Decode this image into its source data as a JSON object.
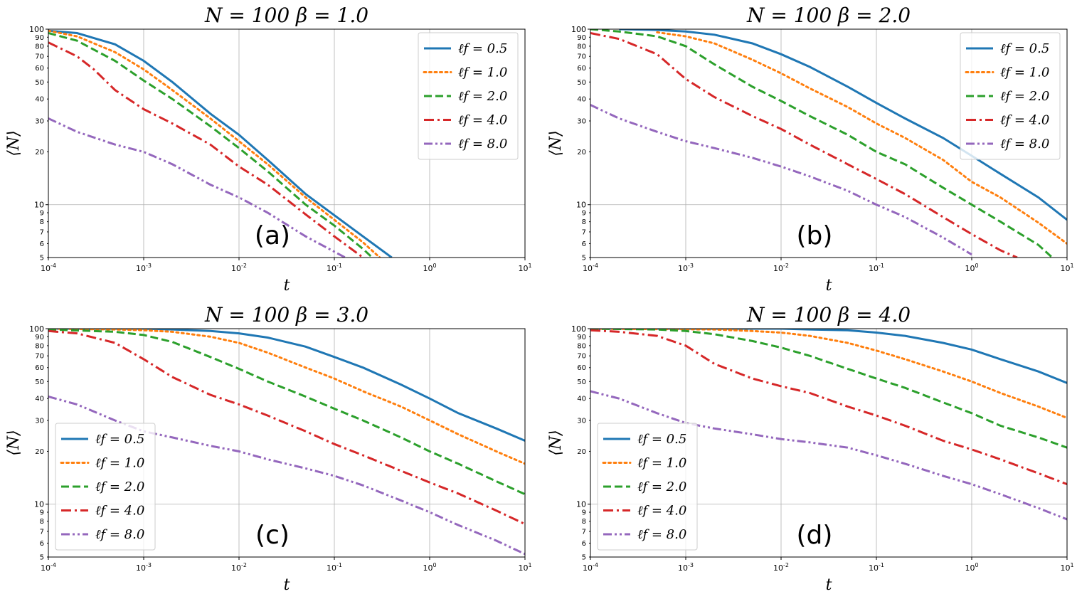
{
  "chart_data": [
    {
      "type": "line",
      "panel": "(a)",
      "title": "N = 100    β = 1.0",
      "xlabel": "t",
      "ylabel": "⟨N⟩",
      "xscale": "log",
      "yscale": "log",
      "xlim": [
        0.0001,
        10
      ],
      "ylim": [
        5,
        100
      ],
      "grid": true,
      "legend_position": "top-right",
      "series": [
        {
          "name": "ℓf = 0.5",
          "color": "#1f77b4",
          "style": "solid",
          "x": [
            0.0001,
            0.0002,
            0.0005,
            0.001,
            0.002,
            0.005,
            0.01,
            0.02,
            0.05,
            0.1,
            0.2,
            0.4
          ],
          "y": [
            98,
            95,
            82,
            66,
            50,
            33,
            25,
            18,
            11.5,
            8.7,
            6.6,
            5
          ]
        },
        {
          "name": "ℓf = 1.0",
          "color": "#ff7f0e",
          "style": "dotted",
          "x": [
            0.0001,
            0.0002,
            0.0005,
            0.001,
            0.002,
            0.005,
            0.01,
            0.02,
            0.05,
            0.1,
            0.2,
            0.3
          ],
          "y": [
            98,
            91,
            74,
            59,
            45,
            31,
            23,
            17,
            11,
            8.2,
            6.1,
            5
          ]
        },
        {
          "name": "ℓf = 2.0",
          "color": "#2ca02c",
          "style": "dashed",
          "x": [
            0.0001,
            0.0002,
            0.0005,
            0.001,
            0.002,
            0.005,
            0.01,
            0.02,
            0.05,
            0.1,
            0.2,
            0.25
          ],
          "y": [
            95,
            86,
            66,
            51,
            40,
            28,
            21,
            15.5,
            10,
            7.6,
            5.6,
            5
          ]
        },
        {
          "name": "ℓf = 4.0",
          "color": "#d62728",
          "style": "dashdot",
          "x": [
            0.0001,
            0.0002,
            0.0003,
            0.0005,
            0.001,
            0.002,
            0.005,
            0.01,
            0.02,
            0.05,
            0.1,
            0.2
          ],
          "y": [
            84,
            70,
            59,
            45,
            35,
            29,
            22,
            16.5,
            13,
            8.8,
            6.6,
            5
          ]
        },
        {
          "name": "ℓf = 8.0",
          "color": "#9467bd",
          "style": "dashdotdot",
          "x": [
            0.0001,
            0.0002,
            0.0005,
            0.001,
            0.002,
            0.005,
            0.01,
            0.02,
            0.05,
            0.1,
            0.13
          ],
          "y": [
            31,
            26,
            22,
            20,
            17,
            13,
            11,
            9,
            6.6,
            5.4,
            5
          ]
        }
      ]
    },
    {
      "type": "line",
      "panel": "(b)",
      "title": "N = 100    β = 2.0",
      "xlabel": "t",
      "ylabel": "⟨N⟩",
      "xscale": "log",
      "yscale": "log",
      "xlim": [
        0.0001,
        10
      ],
      "ylim": [
        5,
        100
      ],
      "grid": true,
      "legend_position": "top-right",
      "series": [
        {
          "name": "ℓf = 0.5",
          "color": "#1f77b4",
          "style": "solid",
          "x": [
            0.0002,
            0.0005,
            0.001,
            0.002,
            0.005,
            0.01,
            0.02,
            0.05,
            0.1,
            0.2,
            0.5,
            1,
            2,
            5,
            10
          ],
          "y": [
            100,
            99,
            97,
            93,
            83,
            72,
            61,
            47,
            38,
            31,
            24,
            19,
            15,
            11,
            8.2
          ]
        },
        {
          "name": "ℓf = 1.0",
          "color": "#ff7f0e",
          "style": "dotted",
          "x": [
            0.0005,
            0.001,
            0.002,
            0.005,
            0.01,
            0.02,
            0.05,
            0.1,
            0.2,
            0.5,
            1,
            2,
            5,
            10
          ],
          "y": [
            96,
            91,
            83,
            67,
            56,
            46,
            36,
            29,
            24,
            18,
            13.5,
            11,
            7.9,
            6
          ]
        },
        {
          "name": "ℓf = 2.0",
          "color": "#2ca02c",
          "style": "dashed",
          "x": [
            0.0001,
            0.0002,
            0.0005,
            0.001,
            0.002,
            0.005,
            0.01,
            0.02,
            0.05,
            0.1,
            0.2,
            0.5,
            1,
            2,
            5,
            7
          ],
          "y": [
            100,
            97,
            91,
            80,
            63,
            47,
            39,
            32,
            25,
            20,
            17,
            12.5,
            10,
            8,
            5.9,
            5
          ]
        },
        {
          "name": "ℓf = 4.0",
          "color": "#d62728",
          "style": "dashdot",
          "x": [
            0.0001,
            0.0002,
            0.0005,
            0.001,
            0.002,
            0.005,
            0.01,
            0.02,
            0.05,
            0.1,
            0.2,
            0.5,
            1,
            2,
            3
          ],
          "y": [
            95,
            88,
            72,
            52,
            41,
            32,
            27,
            22,
            17,
            14,
            11.5,
            8.5,
            6.8,
            5.5,
            5
          ]
        },
        {
          "name": "ℓf = 8.0",
          "color": "#9467bd",
          "style": "dashdotdot",
          "x": [
            0.0001,
            0.0002,
            0.0005,
            0.001,
            0.002,
            0.005,
            0.01,
            0.02,
            0.05,
            0.1,
            0.2,
            0.5,
            1
          ],
          "y": [
            37,
            31,
            26,
            23,
            21,
            18.5,
            16.5,
            14.5,
            12,
            10,
            8.5,
            6.5,
            5.2
          ]
        }
      ]
    },
    {
      "type": "line",
      "panel": "(c)",
      "title": "N = 100    β = 3.0",
      "xlabel": "t",
      "ylabel": "⟨N⟩",
      "xscale": "log",
      "yscale": "log",
      "xlim": [
        0.0001,
        10
      ],
      "ylim": [
        5,
        100
      ],
      "grid": true,
      "legend_position": "bottom-left",
      "series": [
        {
          "name": "ℓf = 0.5",
          "color": "#1f77b4",
          "style": "solid",
          "x": [
            0.0001,
            0.001,
            0.002,
            0.005,
            0.01,
            0.02,
            0.05,
            0.1,
            0.2,
            0.5,
            1,
            2,
            5,
            10
          ],
          "y": [
            100,
            100,
            99,
            97,
            94,
            89,
            79,
            69,
            60,
            48,
            40,
            33,
            27,
            23
          ]
        },
        {
          "name": "ℓf = 1.0",
          "color": "#ff7f0e",
          "style": "dotted",
          "x": [
            0.0001,
            0.0005,
            0.001,
            0.002,
            0.005,
            0.01,
            0.02,
            0.05,
            0.1,
            0.2,
            0.5,
            1,
            2,
            5,
            10
          ],
          "y": [
            100,
            99,
            98,
            96,
            90,
            83,
            73,
            60,
            52,
            44,
            36,
            30,
            25,
            20,
            17
          ]
        },
        {
          "name": "ℓf = 2.0",
          "color": "#2ca02c",
          "style": "dashed",
          "x": [
            0.0001,
            0.0005,
            0.001,
            0.002,
            0.005,
            0.01,
            0.02,
            0.05,
            0.1,
            0.2,
            0.5,
            1,
            2,
            5,
            10
          ],
          "y": [
            99,
            96,
            92,
            84,
            69,
            59,
            50,
            41,
            35,
            30,
            24,
            20,
            17,
            13.5,
            11.4
          ]
        },
        {
          "name": "ℓf = 4.0",
          "color": "#d62728",
          "style": "dashdot",
          "x": [
            0.0001,
            0.0002,
            0.0005,
            0.001,
            0.002,
            0.005,
            0.01,
            0.02,
            0.05,
            0.1,
            0.2,
            0.5,
            1,
            2,
            5,
            10
          ],
          "y": [
            97,
            94,
            83,
            67,
            53,
            42,
            37,
            32,
            26,
            22,
            19,
            15.5,
            13.3,
            11.5,
            9.2,
            7.7
          ]
        },
        {
          "name": "ℓf = 8.0",
          "color": "#9467bd",
          "style": "dashdotdot",
          "x": [
            0.0001,
            0.0002,
            0.0005,
            0.001,
            0.002,
            0.005,
            0.01,
            0.02,
            0.05,
            0.1,
            0.2,
            0.5,
            1,
            2,
            5,
            10
          ],
          "y": [
            41,
            37,
            30,
            26,
            24,
            21.5,
            20,
            18,
            16,
            14.5,
            12.8,
            10.5,
            9,
            7.6,
            6.2,
            5.2
          ]
        }
      ]
    },
    {
      "type": "line",
      "panel": "(d)",
      "title": "N = 100    β = 4.0",
      "xlabel": "t",
      "ylabel": "⟨N⟩",
      "xscale": "log",
      "yscale": "log",
      "xlim": [
        0.0001,
        10
      ],
      "ylim": [
        5,
        100
      ],
      "grid": true,
      "legend_position": "bottom-left",
      "series": [
        {
          "name": "ℓf = 0.5",
          "color": "#1f77b4",
          "style": "solid",
          "x": [
            0.0001,
            0.01,
            0.02,
            0.05,
            0.1,
            0.2,
            0.5,
            1,
            2,
            5,
            10
          ],
          "y": [
            100,
            100,
            99,
            98,
            95,
            91,
            83,
            76,
            67,
            57,
            49
          ]
        },
        {
          "name": "ℓf = 1.0",
          "color": "#ff7f0e",
          "style": "dotted",
          "x": [
            0.0001,
            0.002,
            0.005,
            0.01,
            0.02,
            0.05,
            0.1,
            0.2,
            0.5,
            1,
            2,
            5,
            10
          ],
          "y": [
            100,
            99,
            97,
            95,
            91,
            83,
            75,
            67,
            57,
            50,
            43,
            36,
            31
          ]
        },
        {
          "name": "ℓf = 2.0",
          "color": "#2ca02c",
          "style": "dashed",
          "x": [
            0.0001,
            0.0005,
            0.001,
            0.002,
            0.005,
            0.01,
            0.02,
            0.05,
            0.1,
            0.2,
            0.5,
            1,
            2,
            5,
            10
          ],
          "y": [
            100,
            99,
            97,
            93,
            85,
            78,
            70,
            59,
            52,
            46,
            38,
            33,
            28,
            24,
            21
          ]
        },
        {
          "name": "ℓf = 4.0",
          "color": "#d62728",
          "style": "dashdot",
          "x": [
            0.0001,
            0.0002,
            0.0005,
            0.001,
            0.002,
            0.005,
            0.01,
            0.02,
            0.05,
            0.1,
            0.2,
            0.5,
            1,
            2,
            5,
            10
          ],
          "y": [
            98,
            96,
            91,
            80,
            63,
            52,
            47,
            43,
            36,
            32,
            28,
            23,
            20.5,
            18,
            15,
            13
          ]
        },
        {
          "name": "ℓf = 8.0",
          "color": "#9467bd",
          "style": "dashdotdot",
          "x": [
            0.0001,
            0.0002,
            0.0005,
            0.001,
            0.002,
            0.005,
            0.01,
            0.02,
            0.05,
            0.1,
            0.2,
            0.5,
            1,
            2,
            5,
            10
          ],
          "y": [
            44,
            40,
            33,
            29,
            27,
            25,
            23.5,
            22.5,
            21,
            19,
            17,
            14.5,
            13,
            11.4,
            9.5,
            8.2
          ]
        }
      ]
    }
  ],
  "axis_ticks": {
    "x_major": [
      {
        "base": "10",
        "exp": "-4",
        "value": 0.0001
      },
      {
        "base": "10",
        "exp": "-3",
        "value": 0.001
      },
      {
        "base": "10",
        "exp": "-2",
        "value": 0.01
      },
      {
        "base": "10",
        "exp": "-1",
        "value": 0.1
      },
      {
        "base": "10",
        "exp": "0",
        "value": 1
      },
      {
        "base": "10",
        "exp": "1",
        "value": 10
      }
    ],
    "y_major": [
      {
        "label": "10",
        "value": 10
      },
      {
        "label": "100",
        "value": 100
      }
    ],
    "y_minor": [
      {
        "label": "5",
        "value": 5
      },
      {
        "label": "6",
        "value": 6
      },
      {
        "label": "7",
        "value": 7
      },
      {
        "label": "8",
        "value": 8
      },
      {
        "label": "9",
        "value": 9
      },
      {
        "label": "20",
        "value": 20
      },
      {
        "label": "30",
        "value": 30
      },
      {
        "label": "40",
        "value": 40
      },
      {
        "label": "50",
        "value": 50
      },
      {
        "label": "60",
        "value": 60
      },
      {
        "label": "70",
        "value": 70
      },
      {
        "label": "80",
        "value": 80
      },
      {
        "label": "90",
        "value": 90
      }
    ]
  }
}
